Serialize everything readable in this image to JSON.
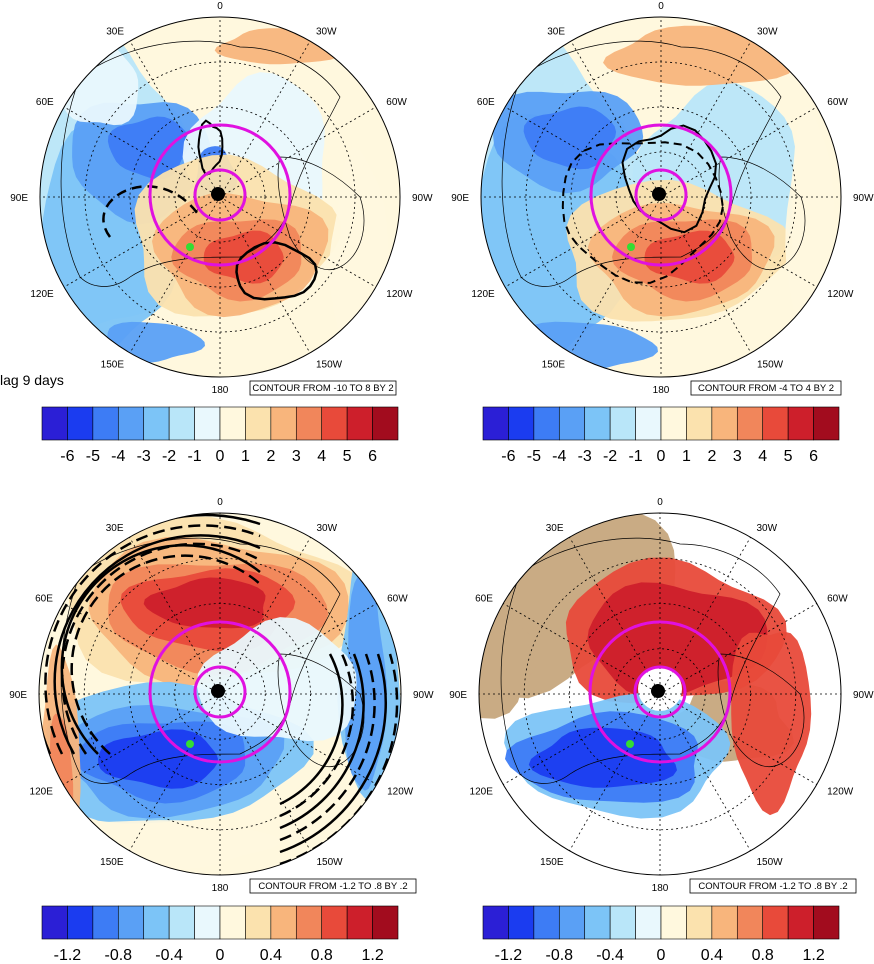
{
  "lag_label": "lag 9 days",
  "longitude_labels": [
    "0",
    "30W",
    "60W",
    "90W",
    "120W",
    "150W",
    "180",
    "150E",
    "120E",
    "90E",
    "60E",
    "30E"
  ],
  "panels": [
    {
      "id": "top-left",
      "contour_text": "CONTOUR FROM -10 TO 8 BY 2",
      "colorbar_ticks": [
        "-6",
        "-5",
        "-4",
        "-3",
        "-2",
        "-1",
        "0",
        "1",
        "2",
        "3",
        "4",
        "5",
        "6"
      ]
    },
    {
      "id": "top-right",
      "contour_text": "CONTOUR FROM -4 TO 4 BY 2",
      "colorbar_ticks": [
        "-6",
        "-5",
        "-4",
        "-3",
        "-2",
        "-1",
        "0",
        "1",
        "2",
        "3",
        "4",
        "5",
        "6"
      ]
    },
    {
      "id": "bottom-left",
      "contour_text": "CONTOUR FROM -1.2 TO .8 BY .2",
      "colorbar_ticks": [
        "-1.2",
        "-0.8",
        "-0.4",
        "0",
        "0.4",
        "0.8",
        "1.2"
      ]
    },
    {
      "id": "bottom-right",
      "contour_text": "CONTOUR FROM -1.2 TO .8 BY .2",
      "colorbar_ticks": [
        "-1.2",
        "-0.8",
        "-0.4",
        "0",
        "0.4",
        "0.8",
        "1.2"
      ]
    }
  ],
  "colors": {
    "palette": [
      "#2b1fd6",
      "#1b3cf0",
      "#3d7cf5",
      "#5aa0f5",
      "#7cc4f7",
      "#b9e6f9",
      "#e9f8fd",
      "#fff8de",
      "#fbe2ae",
      "#f8b57c",
      "#f1865b",
      "#e84a3a",
      "#cd1f2b",
      "#a20c1e"
    ],
    "magenta": "#e011e0",
    "land_mask": "#c9ab84",
    "green_marker": "#33dd33"
  }
}
